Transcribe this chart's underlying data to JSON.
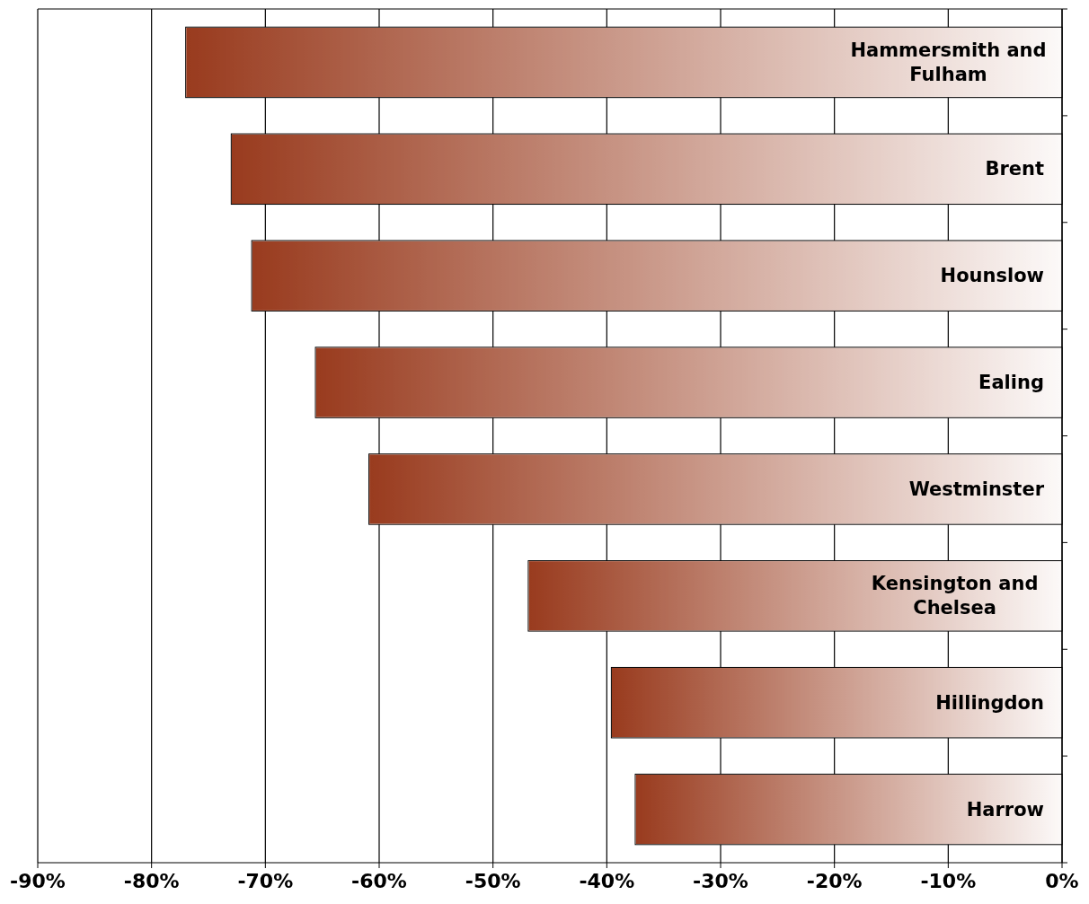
{
  "chart_data": {
    "type": "bar",
    "orientation": "horizontal",
    "categories": [
      "Hammersmith and Fulham",
      "Brent",
      "Hounslow",
      "Ealing",
      "Westminster",
      "Kensington and Chelsea",
      "Hillingdon",
      "Harrow"
    ],
    "values": [
      -77,
      -73,
      -71.2,
      -65.6,
      -60.9,
      -46.9,
      -39.6,
      -37.5
    ],
    "color": "#993b1e",
    "xlim": [
      -90,
      0
    ],
    "xticks": [
      {
        "value": -90,
        "label": "-90%"
      },
      {
        "value": -80,
        "label": "-80%"
      },
      {
        "value": -70,
        "label": "-70%"
      },
      {
        "value": -60,
        "label": "-60%"
      },
      {
        "value": -50,
        "label": "-50%"
      },
      {
        "value": -40,
        "label": "-40%"
      },
      {
        "value": -30,
        "label": "-30%"
      },
      {
        "value": -20,
        "label": "-20%"
      },
      {
        "value": -10,
        "label": "-10%"
      },
      {
        "value": 0,
        "label": "0%"
      }
    ],
    "grid": "x"
  }
}
